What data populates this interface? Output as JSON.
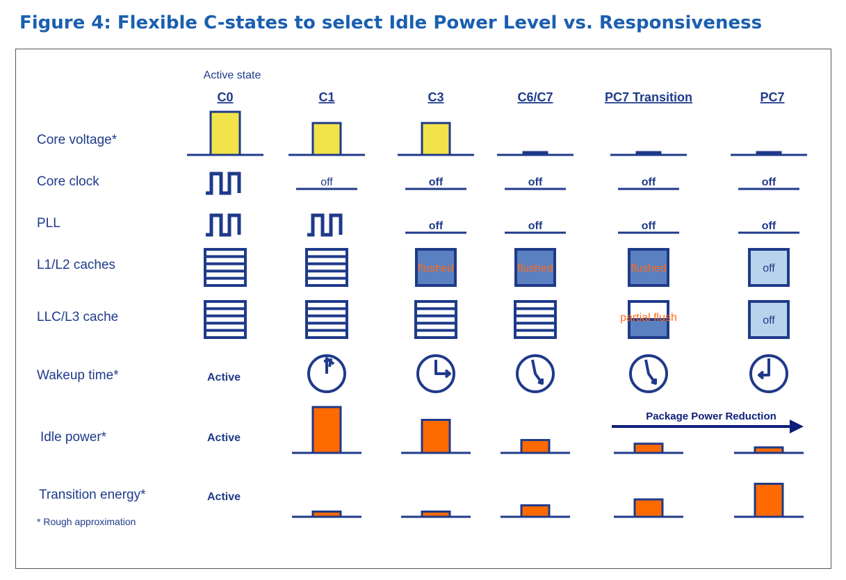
{
  "title": "Figure 4: Flexible C-states to select Idle Power Level vs. Responsiveness",
  "colors": {
    "title": "#1a5fb0",
    "navy": "#1f3a8a",
    "yellow": "#f2e34a",
    "orange": "#ff6a00",
    "cache_blue": "#5a80c0",
    "cache_light": "#b8d4ec",
    "flush_text": "#ff6a1a"
  },
  "active_state_caption": "Active state",
  "columns": [
    "C0",
    "C1",
    "C3",
    "C6/C7",
    "PC7 Transition",
    "PC7"
  ],
  "rows": [
    "Core voltage*",
    "Core clock",
    "PLL",
    "L1/L2 caches",
    "LLC/L3 cache",
    "Wakeup time*",
    "Idle power*",
    "Transition energy*"
  ],
  "footnote": "* Rough approximation",
  "arrow_label": "Package Power Reduction",
  "cells": {
    "core_clock": [
      "clock-wave",
      "off",
      "off",
      "off",
      "off",
      "off"
    ],
    "pll": [
      "clock-wave",
      "clock-wave",
      "off",
      "off",
      "off",
      "off"
    ],
    "l1l2": [
      "lines",
      "lines",
      "flushed",
      "flushed",
      "flushed",
      "off"
    ],
    "llc": [
      "lines",
      "lines",
      "lines",
      "lines",
      "partial flush",
      "off"
    ],
    "wakeup_time": [
      "Active",
      "clock-icon",
      "clock-icon",
      "clock-icon",
      "clock-icon",
      "clock-icon"
    ],
    "idle_power_c0": "Active",
    "transition_energy_c0": "Active"
  },
  "bars": {
    "core_voltage": [
      1.0,
      0.74,
      0.74,
      0.08,
      0.08,
      0.08
    ],
    "idle_power": [
      null,
      1.0,
      0.72,
      0.28,
      0.2,
      0.12
    ],
    "transition_energy": [
      null,
      0.15,
      0.15,
      0.33,
      0.5,
      0.95
    ]
  }
}
